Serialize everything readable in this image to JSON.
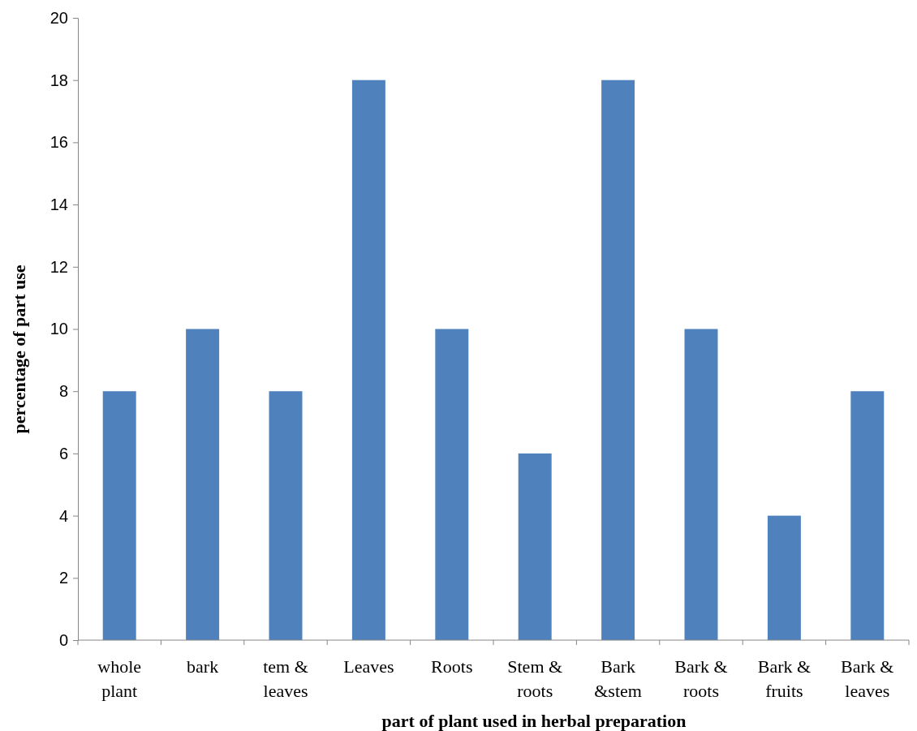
{
  "chart_data": {
    "type": "bar",
    "xlabel": "part of plant used in herbal preparation",
    "ylabel": "percentage of part use",
    "categories": [
      "whole plant",
      "bark",
      "tem & leaves",
      "Leaves",
      "Roots",
      "Stem & roots",
      "Bark &stem",
      "Bark & roots",
      "Bark & fruits",
      "Bark & leaves"
    ],
    "values": [
      8,
      10,
      8,
      18,
      10,
      6,
      18,
      10,
      4,
      8
    ],
    "color": "#4f81bd",
    "ylim": [
      0,
      20
    ],
    "yticks": [
      0,
      2,
      4,
      6,
      8,
      10,
      12,
      14,
      16,
      18,
      20
    ],
    "grid": false
  }
}
